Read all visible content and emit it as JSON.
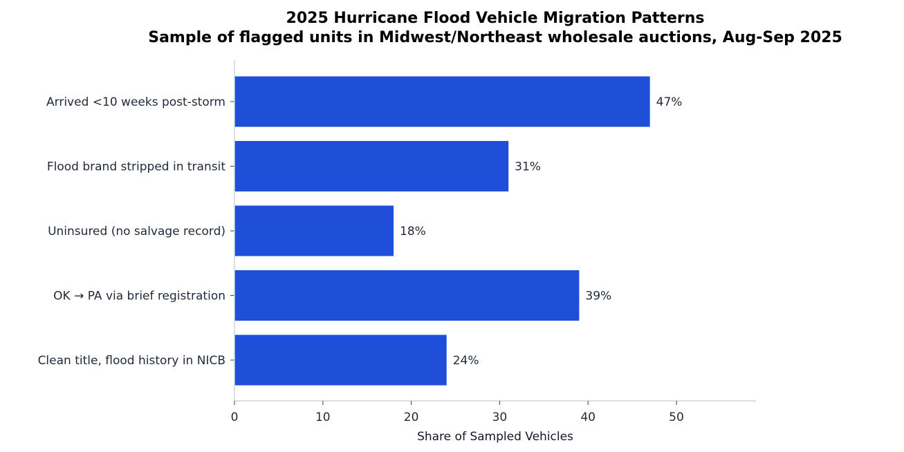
{
  "chart_data": {
    "type": "bar",
    "orientation": "horizontal",
    "title": "2025 Hurricane Flood Vehicle Migration Patterns",
    "subtitle": "Sample of flagged units in Midwest/Northeast wholesale auctions, Aug-Sep 2025",
    "xlabel": "Share of Sampled Vehicles",
    "ylabel": "",
    "categories": [
      "Arrived <10 weeks post-storm",
      "Flood brand stripped in transit",
      "Uninsured (no salvage record)",
      "OK → PA via brief registration",
      "Clean title, flood history in NICB"
    ],
    "values": [
      47,
      31,
      18,
      39,
      24
    ],
    "value_labels": [
      "47%",
      "31%",
      "18%",
      "39%",
      "24%"
    ],
    "xlim": [
      0,
      59
    ],
    "xticks": [
      0,
      10,
      20,
      30,
      40,
      50
    ],
    "grid": false,
    "legend": "none",
    "bar_color": "#1f4fd8",
    "axis_color": "#cbd5e1"
  }
}
